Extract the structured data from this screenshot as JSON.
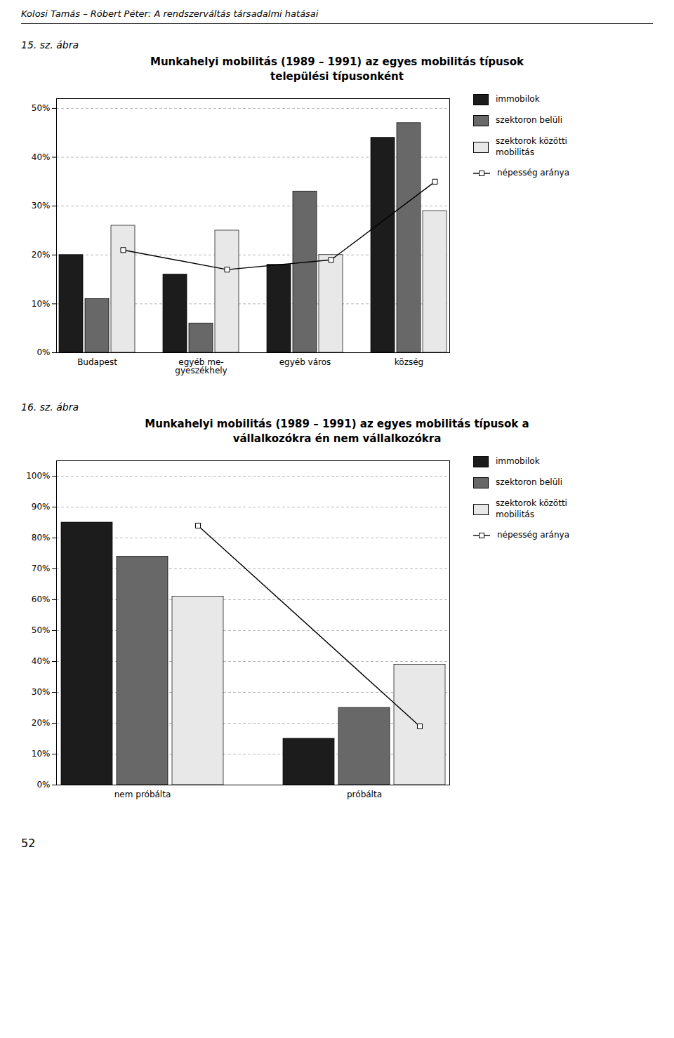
{
  "header": "Kolosi Tamás – Róbert Péter: A rendszerváltás társadalmi hatásai",
  "page_number": "52",
  "chart_data": [
    {
      "type": "bar",
      "annotations": [
        "15. sz. ábra"
      ],
      "title": "Munkahelyi mobilitás (1989 – 1991) az egyes mobilitás típusok\ntelepülési típusonként",
      "categories": [
        "Budapest",
        "egyéb me-\ngyeszékhely",
        "egyéb város",
        "község"
      ],
      "series": [
        {
          "name": "immobilok",
          "type": "bar",
          "color": "#1c1c1c",
          "values": [
            20,
            16,
            18,
            44
          ]
        },
        {
          "name": "szektoron belüli",
          "type": "bar",
          "color": "#686868",
          "values": [
            11,
            6,
            33,
            47
          ]
        },
        {
          "name": "szektorok közötti\nmobilitás",
          "type": "bar",
          "color": "#e8e8e8",
          "values": [
            26,
            25,
            20,
            29
          ]
        },
        {
          "name": "népesség aránya",
          "type": "line",
          "color": "black",
          "marker": "square",
          "values": [
            21,
            17,
            19,
            35
          ]
        }
      ],
      "ylim": [
        0,
        52
      ],
      "yticks": [
        {
          "value": 0,
          "label": "0%"
        },
        {
          "value": 10,
          "label": "10%"
        },
        {
          "value": 20,
          "label": "20%"
        },
        {
          "value": 30,
          "label": "30%"
        },
        {
          "value": 40,
          "label": "40%"
        },
        {
          "value": 50,
          "label": "50%"
        }
      ],
      "grid": true,
      "legend": "right"
    },
    {
      "type": "bar",
      "annotations": [
        "16. sz. ábra"
      ],
      "title": "Munkahelyi mobilitás (1989 – 1991) az egyes mobilitás típusok a\nvállalkozókra én nem vállalkozókra",
      "categories": [
        "nem próbálta",
        "próbálta"
      ],
      "series": [
        {
          "name": "immobilok",
          "type": "bar",
          "color": "#1c1c1c",
          "values": [
            85,
            15
          ]
        },
        {
          "name": "szektoron belüli",
          "type": "bar",
          "color": "#686868",
          "values": [
            74,
            25
          ]
        },
        {
          "name": "szektorok közötti\nmobilitás",
          "type": "bar",
          "color": "#e8e8e8",
          "values": [
            61,
            39
          ]
        },
        {
          "name": "népesség aránya",
          "type": "line",
          "color": "black",
          "marker": "square",
          "values": [
            84,
            19
          ]
        }
      ],
      "ylim": [
        0,
        105
      ],
      "yticks": [
        {
          "value": 0,
          "label": "0%"
        },
        {
          "value": 10,
          "label": "10%"
        },
        {
          "value": 20,
          "label": "20%"
        },
        {
          "value": 30,
          "label": "30%"
        },
        {
          "value": 40,
          "label": "40%"
        },
        {
          "value": 50,
          "label": "50%"
        },
        {
          "value": 60,
          "label": "60%"
        },
        {
          "value": 70,
          "label": "70%"
        },
        {
          "value": 80,
          "label": "80%"
        },
        {
          "value": 90,
          "label": "90%"
        },
        {
          "value": 100,
          "label": "100%"
        }
      ],
      "grid": true,
      "legend": "right"
    }
  ]
}
